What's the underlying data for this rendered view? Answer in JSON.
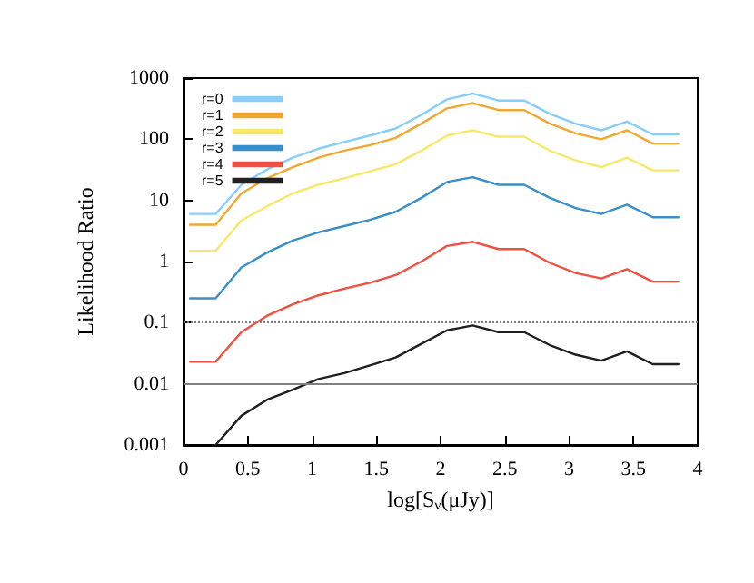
{
  "chart_data": {
    "type": "line",
    "xlabel": "log[S$_{ν}$(μJy)]",
    "ylabel": "Likelihood Ratio",
    "x": [
      0.05,
      0.25,
      0.45,
      0.65,
      0.85,
      1.05,
      1.25,
      1.45,
      1.65,
      1.85,
      2.05,
      2.25,
      2.45,
      2.65,
      2.85,
      3.05,
      3.25,
      3.45,
      3.65,
      3.85
    ],
    "series": [
      {
        "name": "r=0",
        "color": "#87cefa",
        "values": [
          6,
          6,
          18,
          32,
          50,
          70,
          90,
          115,
          150,
          250,
          450,
          560,
          430,
          430,
          260,
          180,
          140,
          195,
          120,
          120
        ]
      },
      {
        "name": "r=1",
        "color": "#f0a830",
        "values": [
          4,
          4,
          13,
          23,
          35,
          50,
          65,
          80,
          105,
          180,
          320,
          390,
          300,
          300,
          180,
          125,
          100,
          140,
          85,
          85
        ]
      },
      {
        "name": "r=2",
        "color": "#f8e868",
        "values": [
          1.5,
          1.5,
          4.7,
          8,
          13,
          18,
          23,
          30,
          39,
          65,
          115,
          140,
          110,
          110,
          65,
          45,
          35,
          50,
          31,
          31
        ]
      },
      {
        "name": "r=3",
        "color": "#3a8fc8",
        "values": [
          0.25,
          0.25,
          0.8,
          1.4,
          2.2,
          3,
          3.8,
          4.8,
          6.5,
          11,
          20,
          24,
          18,
          18,
          11,
          7.5,
          6,
          8.5,
          5.3,
          5.3
        ]
      },
      {
        "name": "r=4",
        "color": "#f05040",
        "values": [
          0.023,
          0.023,
          0.07,
          0.13,
          0.2,
          0.28,
          0.36,
          0.45,
          0.6,
          1,
          1.8,
          2.1,
          1.6,
          1.6,
          0.95,
          0.65,
          0.53,
          0.75,
          0.47,
          0.47
        ]
      },
      {
        "name": "r=5",
        "color": "#202020",
        "values": [
          null,
          0.001,
          0.003,
          0.0055,
          0.008,
          0.012,
          0.015,
          0.02,
          0.027,
          0.045,
          0.075,
          0.09,
          0.07,
          0.07,
          0.043,
          0.03,
          0.024,
          0.034,
          0.021,
          0.021
        ]
      }
    ],
    "xlim": [
      0,
      4
    ],
    "xticks": [
      0,
      0.5,
      1,
      1.5,
      2,
      2.5,
      3,
      3.5,
      4
    ],
    "ylim": [
      0.001,
      1000
    ],
    "yticks": [
      0.001,
      0.01,
      0.1,
      1,
      10,
      100,
      1000
    ],
    "log": "y",
    "legend": "top left",
    "grid": false,
    "marker": "none",
    "line_style": "solid",
    "ref_lines": [
      {
        "axis": "y",
        "value": 0.1,
        "line_style": "dotted",
        "color": "#808080"
      },
      {
        "axis": "y",
        "value": 0.01,
        "line_style": "solid",
        "color": "#808080"
      }
    ]
  }
}
